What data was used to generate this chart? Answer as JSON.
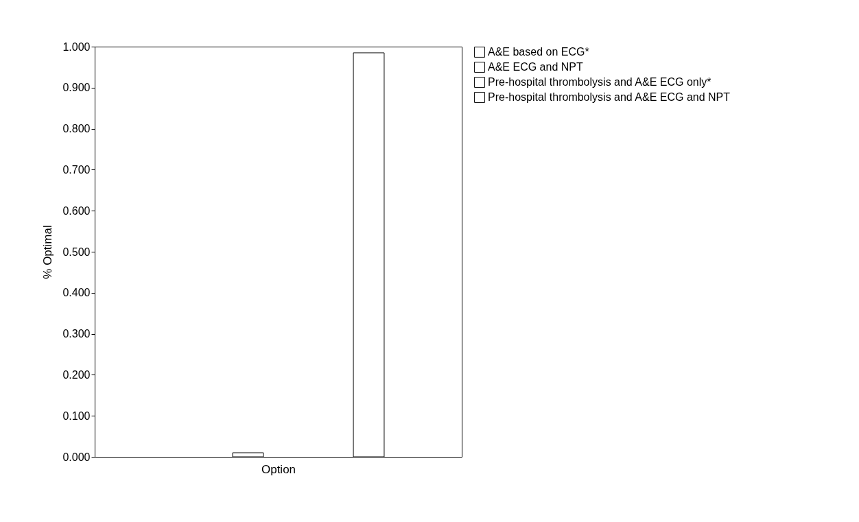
{
  "chart_data": {
    "type": "bar",
    "xlabel": "Option",
    "ylabel": "% Optimal",
    "categories": [
      null
    ],
    "series": [
      {
        "name": "A&E based on ECG*",
        "color": "#ffffff",
        "values": [
          0
        ]
      },
      {
        "name": "A&E ECG and NPT",
        "color": "#ffffff",
        "values": [
          0.01
        ]
      },
      {
        "name": "Pre-hospital thrombolysis and A&E ECG only*",
        "color": "#ffffff",
        "values": [
          0
        ]
      },
      {
        "name": "Pre-hospital thrombolysis and A&E ECG and NPT",
        "color": "#ffffff",
        "values": [
          0.985
        ]
      }
    ],
    "ylim": [
      0,
      1
    ],
    "yticks": [
      {
        "value": 0,
        "label": "0.000"
      },
      {
        "value": 0.1,
        "label": "0.100"
      },
      {
        "value": 0.2,
        "label": "0.200"
      },
      {
        "value": 0.3,
        "label": "0.300"
      },
      {
        "value": 0.4,
        "label": "0.400"
      },
      {
        "value": 0.5,
        "label": "0.500"
      },
      {
        "value": 0.6,
        "label": "0.600"
      },
      {
        "value": 0.7,
        "label": "0.700"
      },
      {
        "value": 0.8,
        "label": "0.800"
      },
      {
        "value": 0.9,
        "label": "0.900"
      },
      {
        "value": 1,
        "label": "1.000"
      }
    ],
    "grid": false,
    "legend": "top right"
  }
}
